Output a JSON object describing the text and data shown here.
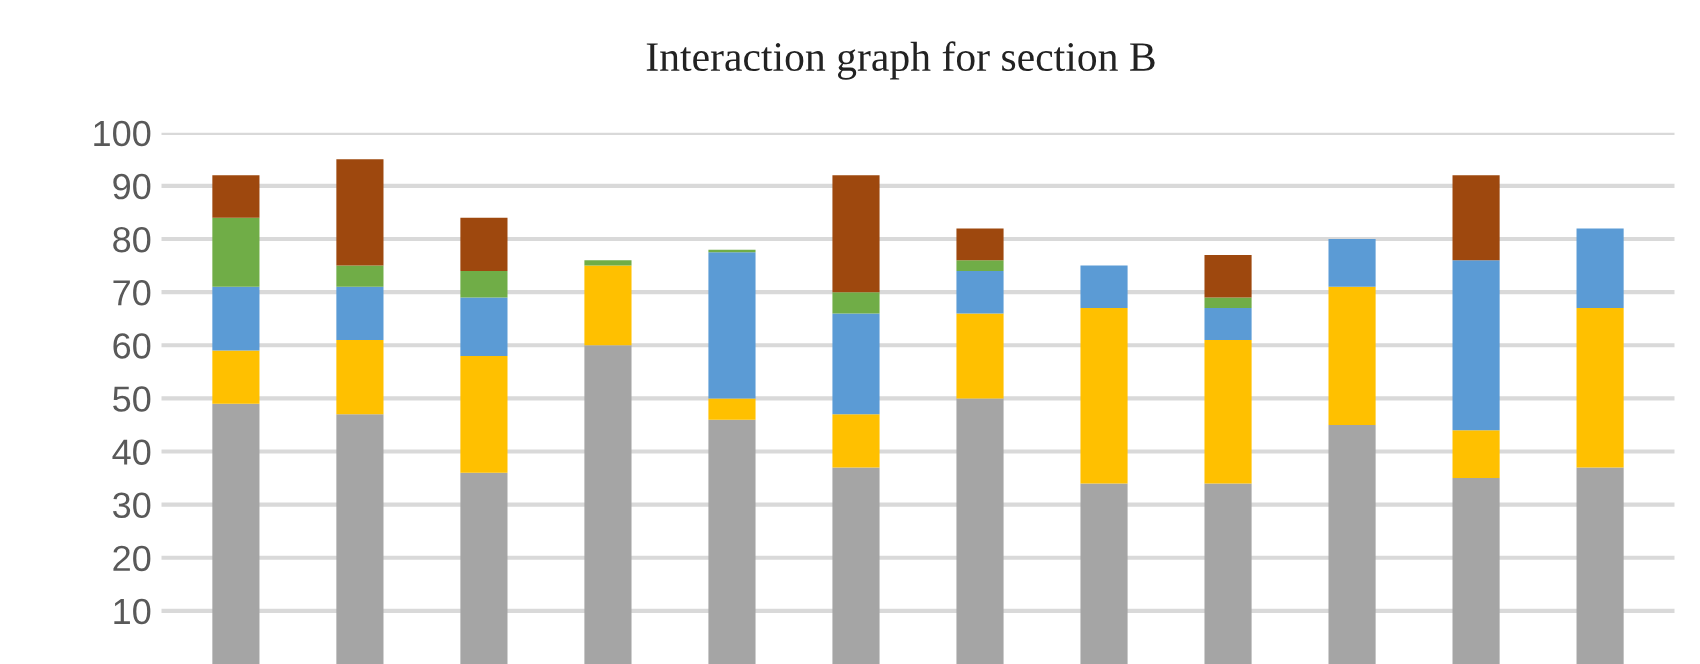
{
  "chart_data": {
    "type": "bar",
    "title": "Interaction graph for section B",
    "stacked": true,
    "categories": [
      null,
      null,
      null,
      null,
      null,
      null,
      null,
      null,
      null,
      null,
      null,
      null
    ],
    "series": [
      {
        "color": "#a5a5a5",
        "values": [
          49,
          47,
          36,
          60,
          46,
          37,
          50,
          34,
          34,
          45,
          35,
          37
        ]
      },
      {
        "color": "#ffc000",
        "values": [
          10,
          14,
          22,
          15,
          4,
          10,
          16,
          33,
          27,
          26,
          9,
          30
        ]
      },
      {
        "color": "#5b9bd5",
        "values": [
          12,
          10,
          11,
          0,
          27.5,
          19,
          8,
          8,
          6,
          9,
          32,
          15
        ]
      },
      {
        "color": "#70ad47",
        "values": [
          13,
          4,
          5,
          1,
          0.5,
          4,
          2,
          0,
          2,
          0,
          0,
          0
        ]
      },
      {
        "color": "#9e480e",
        "values": [
          8,
          20,
          10,
          0,
          0,
          22,
          6,
          0,
          8,
          0,
          16,
          0
        ]
      }
    ],
    "ylim": [
      0,
      100
    ],
    "yticks": [
      10,
      20,
      30,
      40,
      50,
      60,
      70,
      80,
      90,
      100
    ],
    "grid": "y",
    "legend": false
  }
}
